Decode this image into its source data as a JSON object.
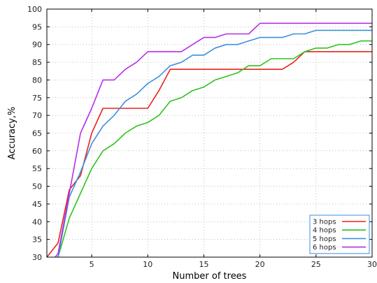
{
  "chart_data": {
    "type": "line",
    "xlabel": "Number of trees",
    "ylabel": "Accuracy,%",
    "xlim": [
      1,
      30
    ],
    "ylim": [
      30,
      100
    ],
    "xticks": [
      5,
      10,
      15,
      20,
      25,
      30
    ],
    "yticks": [
      30,
      35,
      40,
      45,
      50,
      55,
      60,
      65,
      70,
      75,
      80,
      85,
      90,
      95,
      100
    ],
    "grid": true,
    "legend_position": "bottom-right",
    "series": [
      {
        "name": "3 hops",
        "color": "#e8231c",
        "x": [
          1,
          2,
          3,
          4,
          5,
          6,
          7,
          8,
          9,
          10,
          11,
          12,
          13,
          14,
          15,
          16,
          17,
          18,
          19,
          20,
          21,
          22,
          23,
          24,
          25,
          26,
          27,
          28,
          29,
          30
        ],
        "y": [
          30,
          34,
          49,
          53,
          65,
          72,
          72,
          72,
          72,
          72,
          77,
          83,
          83,
          83,
          83,
          83,
          83,
          83,
          83,
          83,
          83,
          83,
          85,
          88,
          88,
          88,
          88,
          88,
          88,
          88
        ]
      },
      {
        "name": "4 hops",
        "color": "#2ec21f",
        "x": [
          1,
          2,
          3,
          4,
          5,
          6,
          7,
          8,
          9,
          10,
          11,
          12,
          13,
          14,
          15,
          16,
          17,
          18,
          19,
          20,
          21,
          22,
          23,
          24,
          25,
          26,
          27,
          28,
          29,
          30
        ],
        "y": [
          27,
          30,
          41,
          48,
          55,
          60,
          62,
          65,
          67,
          68,
          70,
          74,
          75,
          77,
          78,
          80,
          81,
          82,
          84,
          84,
          86,
          86,
          86,
          88,
          89,
          89,
          90,
          90,
          91,
          91
        ]
      },
      {
        "name": "5 hops",
        "color": "#3d8fe0",
        "x": [
          1,
          2,
          3,
          4,
          5,
          6,
          7,
          8,
          9,
          10,
          11,
          12,
          13,
          14,
          15,
          16,
          17,
          18,
          19,
          20,
          21,
          22,
          23,
          24,
          25,
          26,
          27,
          28,
          29,
          30
        ],
        "y": [
          27,
          30,
          47,
          54,
          62,
          67,
          70,
          74,
          76,
          79,
          81,
          84,
          85,
          87,
          87,
          89,
          90,
          90,
          91,
          92,
          92,
          92,
          93,
          93,
          94,
          94,
          94,
          94,
          94,
          94
        ]
      },
      {
        "name": "6 hops",
        "color": "#b62fe8",
        "x": [
          1,
          2,
          3,
          4,
          5,
          6,
          7,
          8,
          9,
          10,
          11,
          12,
          13,
          14,
          15,
          16,
          17,
          18,
          19,
          20,
          21,
          22,
          23,
          24,
          25,
          26,
          27,
          28,
          29,
          30
        ],
        "y": [
          27,
          31,
          48,
          65,
          72,
          80,
          80,
          83,
          85,
          88,
          88,
          88,
          88,
          90,
          92,
          92,
          93,
          93,
          93,
          96,
          96,
          96,
          96,
          96,
          96,
          96,
          96,
          96,
          96,
          96
        ]
      }
    ]
  }
}
